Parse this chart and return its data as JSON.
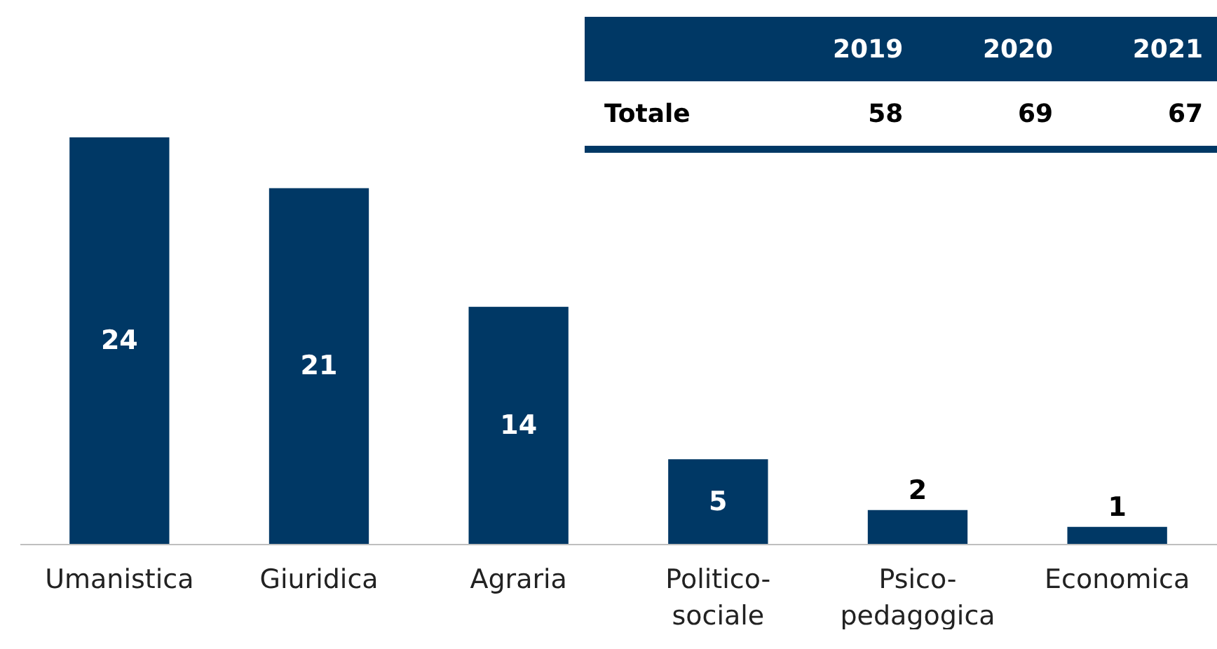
{
  "chart_data": {
    "type": "bar",
    "categories": [
      "Umanistica",
      "Giuridica",
      "Agraria",
      "Politico-sociale",
      "Psico-pedagogica",
      "Economica"
    ],
    "values": [
      24,
      21,
      14,
      5,
      2,
      1
    ],
    "color": "#003865",
    "data_labels": true,
    "tick_labels": "x",
    "annotations": [
      "2019",
      "2020",
      "2021",
      "Totale",
      "58",
      "69",
      "67"
    ]
  }
}
